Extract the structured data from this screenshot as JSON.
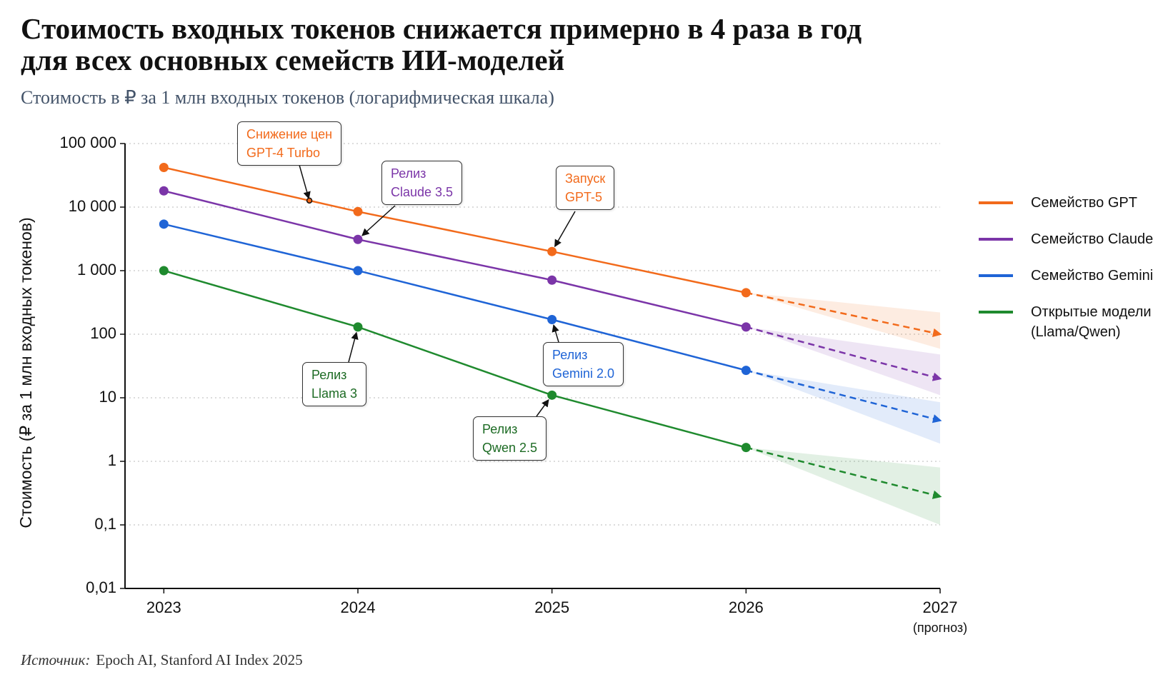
{
  "chart_data": {
    "type": "line",
    "title": "Стоимость входных токенов снижается примерно в 4 раза в год\nдля всех основных семейств ИИ-моделей",
    "subtitle": "Стоимость в ₽ за 1 млн входных токенов (логарифмическая шкала)",
    "y_label": "Стоимость (₽ за 1 млн входных токенов)",
    "x": [
      2023,
      2024,
      2025,
      2026,
      2027
    ],
    "xlim": [
      2022.8,
      2027
    ],
    "xticks": [
      2023,
      2024,
      2025,
      2026,
      2027
    ],
    "forecast_label": "(прогноз)",
    "forecast_from": 3,
    "ylim": [
      0.01,
      100000
    ],
    "log_y": true,
    "grid": true,
    "legend": "right",
    "yticks": [
      {
        "value": 100000,
        "label": "100 000"
      },
      {
        "value": 10000,
        "label": "10 000"
      },
      {
        "value": 1000,
        "label": "1 000"
      },
      100,
      10,
      1,
      {
        "value": 0.1,
        "label": "0,1"
      },
      {
        "value": 0.01,
        "label": "0,01"
      }
    ],
    "series": [
      {
        "name": "Семейство GPT",
        "color": "#f26a1b",
        "values": [
          42000,
          8500,
          2000,
          450,
          100
        ],
        "lower": [
          null,
          null,
          null,
          450,
          59
        ],
        "upper": [
          null,
          null,
          null,
          450,
          220
        ]
      },
      {
        "name": "Семейство Claude",
        "color": "#7b35a8",
        "values": [
          18000,
          3100,
          710,
          130,
          20
        ],
        "lower": [
          null,
          null,
          null,
          130,
          11
        ],
        "upper": [
          null,
          null,
          null,
          130,
          48
        ]
      },
      {
        "name": "Семейство Gemini",
        "color": "#1f64d6",
        "values": [
          5400,
          1000,
          170,
          27,
          4.4
        ],
        "lower": [
          null,
          null,
          null,
          27,
          1.9
        ],
        "upper": [
          null,
          null,
          null,
          27,
          8.5
        ]
      },
      {
        "name": "Открытые модели\n(Llama/Qwen)",
        "color": "#1f8a2e",
        "values": [
          1000,
          130,
          11,
          1.65,
          0.28
        ],
        "lower": [
          null,
          null,
          null,
          1.65,
          0.1
        ],
        "upper": [
          null,
          null,
          null,
          1.65,
          0.8
        ]
      }
    ],
    "annotations": [
      {
        "text": "Снижение цен\nGPT-4 Turbo",
        "series": 0,
        "x": 2023.75,
        "color": "#f26a1b"
      },
      {
        "text": "Релиз\nClaude 3.5",
        "series": 1,
        "x": 2024,
        "color": "#7b35a8"
      },
      {
        "text": "Запуск\nGPT-5",
        "series": 0,
        "x": 2025,
        "color": "#f26a1b"
      },
      {
        "text": "Релиз\nLlama 3",
        "series": 3,
        "x": 2024,
        "color": "#1d6b24"
      },
      {
        "text": "Релиз\nGemini 2.0",
        "series": 2,
        "x": 2025,
        "color": "#1f64d6"
      },
      {
        "text": "Релиз\nQwen 2.5",
        "series": 3,
        "x": 2025,
        "color": "#1d6b24"
      }
    ],
    "source_label": "Источник:",
    "source": "Epoch AI, Stanford AI Index 2025"
  }
}
